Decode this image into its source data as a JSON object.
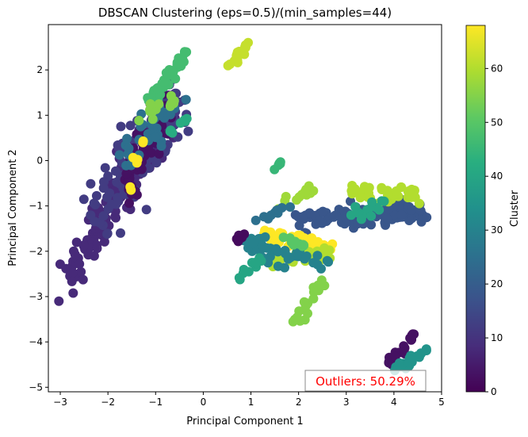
{
  "chart_data": {
    "type": "scatter",
    "title": "DBSCAN Clustering (eps=0.5)/(min_samples=44)",
    "xlabel": "Principal Component 1",
    "ylabel": "Principal Component 2",
    "xlim": [
      -3.25,
      5.0
    ],
    "ylim": [
      -5.1,
      3.0
    ],
    "x_ticks": [
      -3,
      -2,
      -1,
      0,
      1,
      2,
      3,
      4,
      5
    ],
    "y_ticks": [
      -5,
      -4,
      -3,
      -2,
      -1,
      0,
      1,
      2
    ],
    "grid": false,
    "colormap": "viridis",
    "colorbar": {
      "label": "Cluster",
      "range": [
        0,
        68
      ],
      "ticks": [
        0,
        10,
        20,
        30,
        40,
        50,
        60
      ]
    },
    "annotation": {
      "text": "Outliers: 50.29%",
      "color": "#ff0000",
      "position": "bottom-right"
    },
    "clusters": [
      {
        "cluster": 8,
        "shape": "segment",
        "from": [
          -2.85,
          -2.5
        ],
        "to": [
          -0.6,
          1.2
        ],
        "spread": 0.25,
        "n": 160
      },
      {
        "cluster": 12,
        "shape": "segment",
        "from": [
          -2.2,
          -1.2
        ],
        "to": [
          -0.5,
          1.3
        ],
        "spread": 0.3,
        "n": 120
      },
      {
        "cluster": 3,
        "shape": "segment",
        "from": [
          -1.6,
          -0.6
        ],
        "to": [
          -0.9,
          1.0
        ],
        "spread": 0.22,
        "n": 70
      },
      {
        "cluster": 25,
        "shape": "segment",
        "from": [
          -1.7,
          0.0
        ],
        "to": [
          -0.6,
          1.3
        ],
        "spread": 0.22,
        "n": 40
      },
      {
        "cluster": 47,
        "shape": "segment",
        "from": [
          -1.1,
          1.3
        ],
        "to": [
          -0.35,
          2.4
        ],
        "spread": 0.07,
        "n": 45
      },
      {
        "cluster": 55,
        "shape": "segment",
        "from": [
          -1.5,
          0.9
        ],
        "to": [
          -0.6,
          1.35
        ],
        "spread": 0.08,
        "n": 14
      },
      {
        "cluster": 42,
        "shape": "segment",
        "from": [
          -0.7,
          0.6
        ],
        "to": [
          -0.25,
          1.0
        ],
        "spread": 0.05,
        "n": 8
      },
      {
        "cluster": 68,
        "shape": "blob",
        "center": [
          -1.4,
          0.02
        ],
        "spread": 0.04,
        "n": 3
      },
      {
        "cluster": 68,
        "shape": "blob",
        "center": [
          -1.25,
          0.4
        ],
        "spread": 0.03,
        "n": 2
      },
      {
        "cluster": 68,
        "shape": "blob",
        "center": [
          -1.5,
          -0.65
        ],
        "spread": 0.03,
        "n": 2
      },
      {
        "cluster": 62,
        "shape": "segment",
        "from": [
          0.55,
          2.05
        ],
        "to": [
          0.95,
          2.6
        ],
        "spread": 0.05,
        "n": 16
      },
      {
        "cluster": 45,
        "shape": "segment",
        "from": [
          1.5,
          -0.2
        ],
        "to": [
          1.7,
          0.1
        ],
        "spread": 0.03,
        "n": 6
      },
      {
        "cluster": 58,
        "shape": "segment",
        "from": [
          1.5,
          -1.0
        ],
        "to": [
          2.3,
          -0.7
        ],
        "spread": 0.06,
        "n": 14
      },
      {
        "cluster": 18,
        "shape": "segment",
        "from": [
          2.0,
          -1.3
        ],
        "to": [
          4.7,
          -1.1
        ],
        "spread": 0.14,
        "n": 110
      },
      {
        "cluster": 60,
        "shape": "segment",
        "from": [
          3.0,
          -0.7
        ],
        "to": [
          4.6,
          -0.8
        ],
        "spread": 0.1,
        "n": 35
      },
      {
        "cluster": 40,
        "shape": "segment",
        "from": [
          3.1,
          -1.2
        ],
        "to": [
          3.9,
          -1.0
        ],
        "spread": 0.1,
        "n": 14
      },
      {
        "cluster": 68,
        "shape": "segment",
        "from": [
          1.2,
          -1.6
        ],
        "to": [
          2.6,
          -1.9
        ],
        "spread": 0.08,
        "n": 45
      },
      {
        "cluster": 60,
        "shape": "segment",
        "from": [
          1.3,
          -2.2
        ],
        "to": [
          2.8,
          -2.05
        ],
        "spread": 0.09,
        "n": 32
      },
      {
        "cluster": 30,
        "shape": "segment",
        "from": [
          0.7,
          -1.8
        ],
        "to": [
          2.6,
          -2.3
        ],
        "spread": 0.13,
        "n": 45
      },
      {
        "cluster": 40,
        "shape": "segment",
        "from": [
          0.7,
          -2.6
        ],
        "to": [
          1.2,
          -2.2
        ],
        "spread": 0.05,
        "n": 12
      },
      {
        "cluster": 25,
        "shape": "segment",
        "from": [
          1.1,
          -1.3
        ],
        "to": [
          1.8,
          -1.0
        ],
        "spread": 0.05,
        "n": 10
      },
      {
        "cluster": 2,
        "shape": "segment",
        "from": [
          0.7,
          -1.8
        ],
        "to": [
          0.9,
          -1.55
        ],
        "spread": 0.04,
        "n": 5
      },
      {
        "cluster": 50,
        "shape": "segment",
        "from": [
          1.6,
          -1.65
        ],
        "to": [
          2.1,
          -1.9
        ],
        "spread": 0.05,
        "n": 10
      },
      {
        "cluster": 55,
        "shape": "segment",
        "from": [
          1.9,
          -3.6
        ],
        "to": [
          2.6,
          -2.6
        ],
        "spread": 0.07,
        "n": 24
      },
      {
        "cluster": 3,
        "shape": "segment",
        "from": [
          3.9,
          -4.5
        ],
        "to": [
          4.4,
          -3.9
        ],
        "spread": 0.05,
        "n": 18
      },
      {
        "cluster": 35,
        "shape": "segment",
        "from": [
          4.0,
          -4.65
        ],
        "to": [
          4.8,
          -4.1
        ],
        "spread": 0.05,
        "n": 22
      }
    ]
  }
}
